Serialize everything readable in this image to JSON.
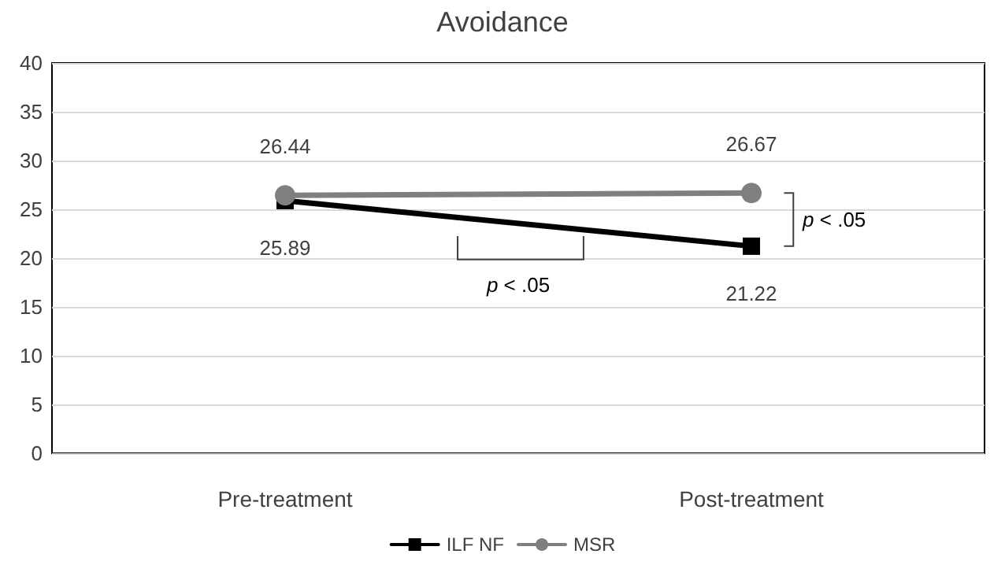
{
  "chart_data": {
    "type": "line",
    "title": "Avoidance",
    "categories": [
      "Pre-treatment",
      "Post-treatment"
    ],
    "series": [
      {
        "name": "ILF NF",
        "color": "#000000",
        "marker": "square",
        "values": [
          25.89,
          21.22
        ]
      },
      {
        "name": "MSR",
        "color": "#7f7f7f",
        "marker": "circle",
        "values": [
          26.44,
          26.67
        ]
      }
    ],
    "ylim": [
      0,
      40
    ],
    "yticks": [
      0,
      5,
      10,
      15,
      20,
      25,
      30,
      35,
      40
    ],
    "grid": "y",
    "legend": "bottom",
    "data_labels": true,
    "annotations": [
      "p < .05",
      "p < .05"
    ]
  }
}
